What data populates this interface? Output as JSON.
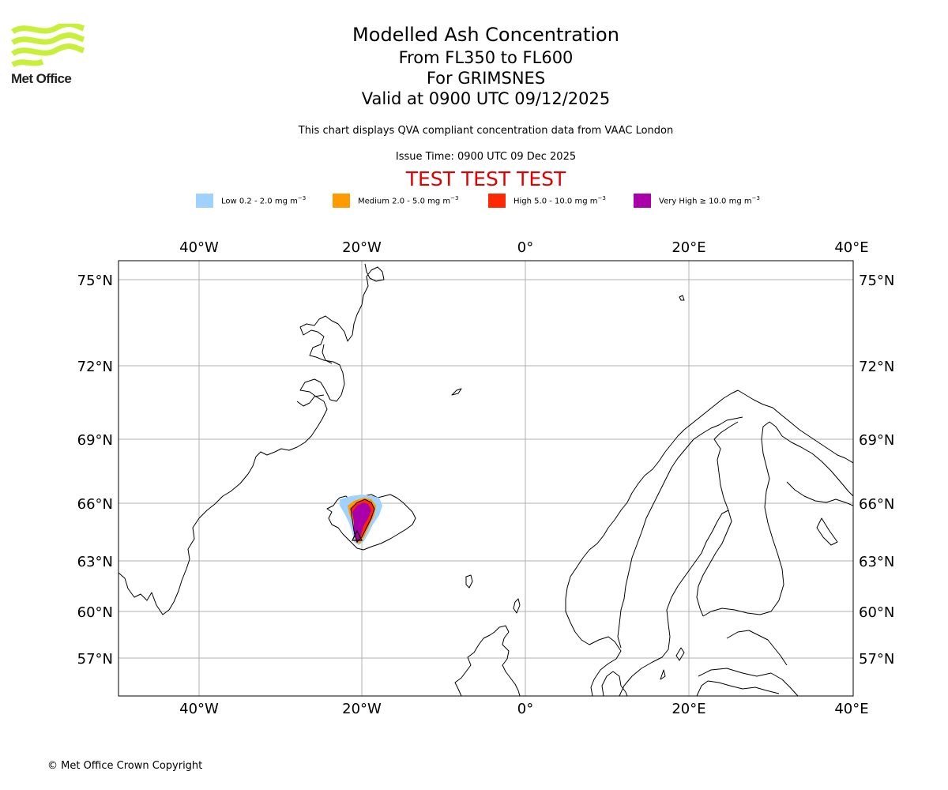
{
  "brand": {
    "name": "Met Office",
    "logo_color": "#c8f03a"
  },
  "title": {
    "main": "Modelled Ash Concentration",
    "levels": "From FL350 to FL600",
    "volcano": "For GRIMSNES",
    "valid": "Valid at 0900 UTC 09/12/2025"
  },
  "subtitle": "This chart displays QVA compliant concentration data from VAAC London",
  "issue_time": "Issue Time: 0900 UTC 09 Dec 2025",
  "test_banner": "TEST TEST TEST",
  "legend": [
    {
      "label": "Low 0.2 - 2.0 mg m",
      "exp": "−3",
      "color": "#a0d2ff"
    },
    {
      "label": "Medium 2.0 - 5.0 mg m",
      "exp": "−3",
      "color": "#ff9b00"
    },
    {
      "label": "High 5.0 - 10.0 mg m",
      "exp": "−3",
      "color": "#ff2800"
    },
    {
      "label": "Very High ≥ 10.0 mg m",
      "exp": "−3",
      "color": "#aa00aa"
    }
  ],
  "map": {
    "lon_ticks": [
      "40°W",
      "20°W",
      "0°",
      "20°E",
      "40°E"
    ],
    "lat_ticks": [
      "75°N",
      "72°N",
      "69°N",
      "66°N",
      "63°N",
      "60°N",
      "57°N"
    ],
    "volcano_marker": "triangle"
  },
  "copyright": "© Met Office Crown Copyright"
}
